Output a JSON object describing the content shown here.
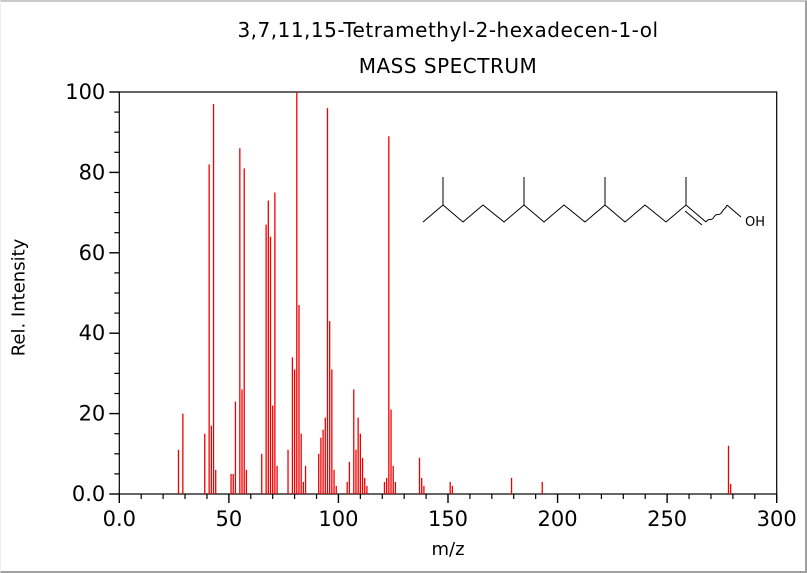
{
  "header": {
    "title": "3,7,11,15-Tetramethyl-2-hexadecen-1-ol",
    "subtitle": "MASS SPECTRUM"
  },
  "axes": {
    "x_label": "m/z",
    "y_label": "Rel. Intensity"
  },
  "structure": {
    "hydroxyl_label": "OH"
  },
  "colors": {
    "peak": "#ee0000",
    "axis": "#000000",
    "background": "#ffffff",
    "text": "#000000"
  },
  "chart_data": {
    "type": "bar",
    "subtype": "mass-spectrum-sticks",
    "title": "3,7,11,15-Tetramethyl-2-hexadecen-1-ol",
    "subtitle": "MASS SPECTRUM",
    "xlabel": "m/z",
    "ylabel": "Rel. Intensity",
    "xlim": [
      0,
      300
    ],
    "ylim": [
      0,
      100
    ],
    "grid": false,
    "legend": false,
    "x_major_tick_values": [
      0,
      50,
      100,
      150,
      200,
      250,
      300
    ],
    "x_major_tick_labels": [
      "0.0",
      "50",
      "100",
      "150",
      "200",
      "250",
      "300"
    ],
    "x_minor_tick_step": 10,
    "y_major_tick_values": [
      0,
      20,
      40,
      60,
      80,
      100
    ],
    "y_major_tick_labels": [
      "0.0",
      "20",
      "40",
      "60",
      "80",
      "100"
    ],
    "y_minor_tick_step": 5,
    "series_name": "relative intensity",
    "points": [
      [
        27,
        11
      ],
      [
        29,
        20
      ],
      [
        39,
        15
      ],
      [
        41,
        82
      ],
      [
        42,
        17
      ],
      [
        43,
        97
      ],
      [
        44,
        6
      ],
      [
        51,
        5
      ],
      [
        52,
        5
      ],
      [
        53,
        23
      ],
      [
        55,
        86
      ],
      [
        56,
        26
      ],
      [
        57,
        81
      ],
      [
        58,
        6
      ],
      [
        65,
        10
      ],
      [
        67,
        67
      ],
      [
        68,
        73
      ],
      [
        69,
        64
      ],
      [
        70,
        22
      ],
      [
        71,
        75
      ],
      [
        72,
        7
      ],
      [
        77,
        11
      ],
      [
        79,
        34
      ],
      [
        80,
        31
      ],
      [
        81,
        100
      ],
      [
        82,
        47
      ],
      [
        83,
        15
      ],
      [
        84,
        3
      ],
      [
        85,
        7
      ],
      [
        91,
        10
      ],
      [
        92,
        14
      ],
      [
        93,
        16
      ],
      [
        94,
        19
      ],
      [
        95,
        96
      ],
      [
        96,
        43
      ],
      [
        97,
        31
      ],
      [
        98,
        6
      ],
      [
        99,
        2
      ],
      [
        104,
        3
      ],
      [
        105,
        8
      ],
      [
        107,
        26
      ],
      [
        108,
        11
      ],
      [
        109,
        19
      ],
      [
        110,
        15
      ],
      [
        111,
        9
      ],
      [
        112,
        4
      ],
      [
        113,
        2
      ],
      [
        121,
        3
      ],
      [
        122,
        4
      ],
      [
        123,
        89
      ],
      [
        124,
        21
      ],
      [
        125,
        7
      ],
      [
        126,
        3
      ],
      [
        137,
        9
      ],
      [
        138,
        4
      ],
      [
        139,
        2
      ],
      [
        151,
        3
      ],
      [
        152,
        2
      ],
      [
        179,
        4
      ],
      [
        193,
        3
      ],
      [
        278,
        12
      ],
      [
        279,
        2.5
      ]
    ]
  }
}
